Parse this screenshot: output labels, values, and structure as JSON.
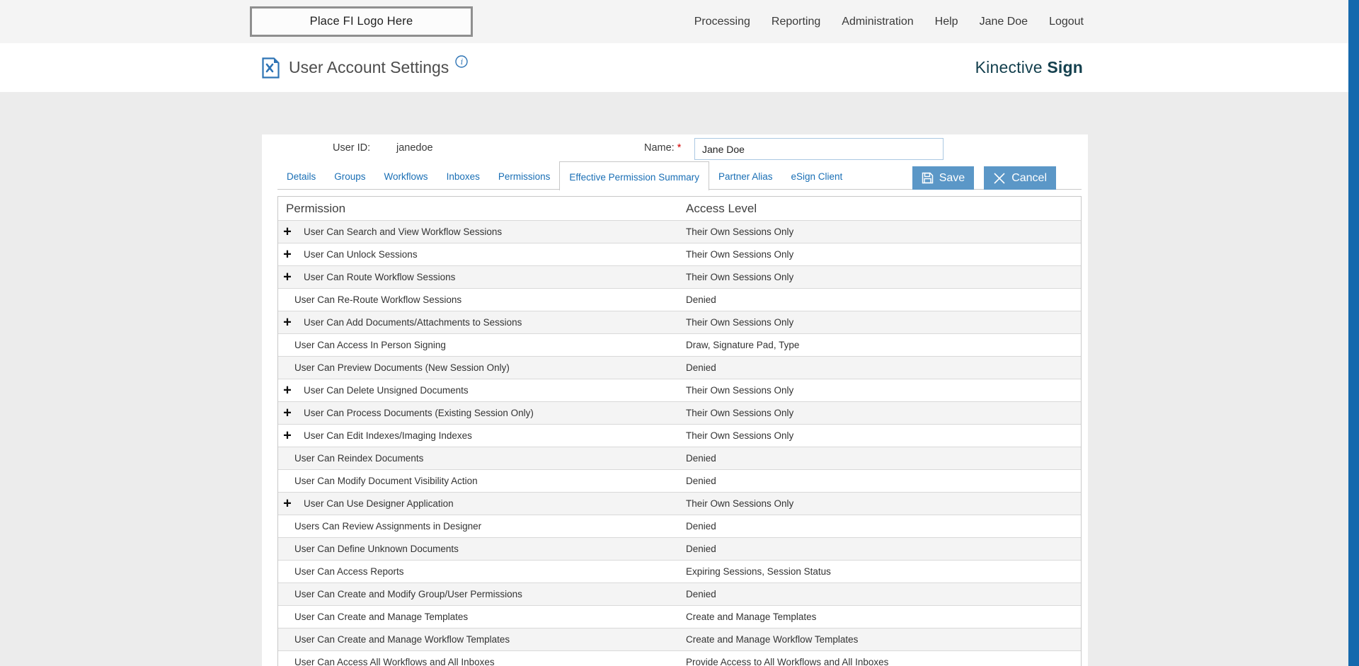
{
  "topbar": {
    "logo_placeholder": "Place FI Logo Here",
    "nav": [
      {
        "label": "Processing"
      },
      {
        "label": "Reporting"
      },
      {
        "label": "Administration"
      },
      {
        "label": "Help"
      },
      {
        "label": "Jane Doe"
      },
      {
        "label": "Logout"
      }
    ]
  },
  "header": {
    "title": "User Account Settings",
    "brand_regular": "Kinective",
    "brand_bold": "Sign"
  },
  "form": {
    "user_id_label": "User ID:",
    "user_id_value": "janedoe",
    "name_label": "Name:",
    "required_marker": "*",
    "name_value": "Jane Doe"
  },
  "tabs": [
    {
      "label": "Details",
      "active": false
    },
    {
      "label": "Groups",
      "active": false
    },
    {
      "label": "Workflows",
      "active": false
    },
    {
      "label": "Inboxes",
      "active": false
    },
    {
      "label": "Permissions",
      "active": false
    },
    {
      "label": "Effective Permission Summary",
      "active": true
    },
    {
      "label": "Partner Alias",
      "active": false
    },
    {
      "label": "eSign Client",
      "active": false
    }
  ],
  "actions": {
    "save_label": "Save",
    "cancel_label": "Cancel"
  },
  "table": {
    "columns": [
      "Permission",
      "Access Level"
    ],
    "rows": [
      {
        "permission": "User Can Search and View Workflow Sessions",
        "access": "Their Own Sessions Only",
        "expandable": true
      },
      {
        "permission": "User Can Unlock Sessions",
        "access": "Their Own Sessions Only",
        "expandable": true
      },
      {
        "permission": "User Can Route Workflow Sessions",
        "access": "Their Own Sessions Only",
        "expandable": true
      },
      {
        "permission": "User Can Re-Route Workflow Sessions",
        "access": "Denied",
        "expandable": false
      },
      {
        "permission": "User Can Add Documents/Attachments to Sessions",
        "access": "Their Own Sessions Only",
        "expandable": true
      },
      {
        "permission": "User Can Access In Person Signing",
        "access": "Draw, Signature Pad, Type",
        "expandable": false
      },
      {
        "permission": "User Can Preview Documents (New Session Only)",
        "access": "Denied",
        "expandable": false
      },
      {
        "permission": "User Can Delete Unsigned Documents",
        "access": "Their Own Sessions Only",
        "expandable": true
      },
      {
        "permission": "User Can Process Documents (Existing Session Only)",
        "access": "Their Own Sessions Only",
        "expandable": true
      },
      {
        "permission": "User Can Edit Indexes/Imaging Indexes",
        "access": "Their Own Sessions Only",
        "expandable": true
      },
      {
        "permission": "User Can Reindex Documents",
        "access": "Denied",
        "expandable": false
      },
      {
        "permission": "User Can Modify Document Visibility Action",
        "access": "Denied",
        "expandable": false
      },
      {
        "permission": "User Can Use Designer Application",
        "access": "Their Own Sessions Only",
        "expandable": true
      },
      {
        "permission": "Users Can Review Assignments in Designer",
        "access": "Denied",
        "expandable": false
      },
      {
        "permission": "User Can Define Unknown Documents",
        "access": "Denied",
        "expandable": false
      },
      {
        "permission": "User Can Access Reports",
        "access": "Expiring Sessions, Session Status",
        "expandable": false
      },
      {
        "permission": "User Can Create and Modify Group/User Permissions",
        "access": "Denied",
        "expandable": false
      },
      {
        "permission": "User Can Create and Manage Templates",
        "access": "Create and Manage Templates",
        "expandable": false
      },
      {
        "permission": "User Can Create and Manage Workflow Templates",
        "access": "Create and Manage Workflow Templates",
        "expandable": false
      },
      {
        "permission": "User Can Access All Workflows and All Inboxes",
        "access": "Provide Access to All Workflows and All Inboxes",
        "expandable": false
      }
    ]
  },
  "colors": {
    "accent_blue": "#1a6fb5",
    "button_blue": "#5b97c7",
    "scrollbar_blue": "#1569ad",
    "brand_teal": "#14404e",
    "required_red": "#d40000",
    "icon_blue": "#2e74b5"
  }
}
